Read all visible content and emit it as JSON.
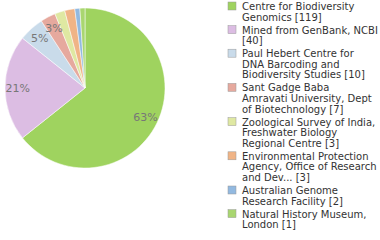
{
  "chart_data": {
    "type": "pie",
    "categories": [
      "Centre for Biodiversity Genomics [119]",
      "Mined from GenBank, NCBI [40]",
      "Paul Hebert Centre for DNA Barcoding and Biodiversity Studies [10]",
      "Sant Gadge Baba Amravati University, Dept of Biotechnology [7]",
      "Zoological Survey of India, Freshwater Biology Regional Centre [3]",
      "Environmental Protection Agency, Office of Research and Dev... [3]",
      "Australian Genome Research Facility [2]",
      "Natural History Museum, London [1]"
    ],
    "values": [
      63,
      21,
      5,
      3,
      2,
      2,
      1,
      1
    ],
    "value_labels": [
      "63%",
      "21%",
      "5%",
      "3%",
      null,
      null,
      null,
      null
    ],
    "colors": [
      "#9fd35f",
      "#dcbde3",
      "#c9dbea",
      "#e6a99e",
      "#dfe8a2",
      "#f0b486",
      "#92b9e0",
      "#a9d670"
    ],
    "data_labels": true,
    "legend": "right"
  }
}
